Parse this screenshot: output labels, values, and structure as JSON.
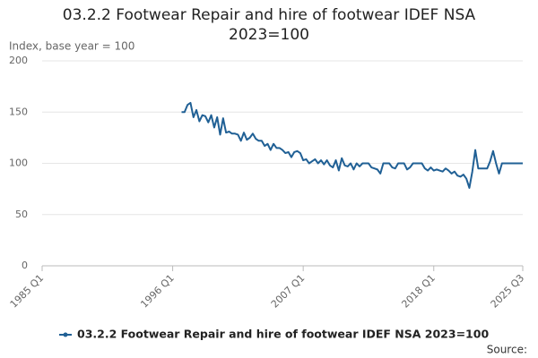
{
  "chart_data": {
    "type": "line",
    "title": "03.2.2 Footwear Repair and hire of footwear IDEF NSA 2023=100",
    "y_label": "Index, base year = 100",
    "source_label": "Source:",
    "xlim": [
      1985,
      2025.5
    ],
    "xticks": [
      {
        "value": 1985,
        "label": "1985 Q1"
      },
      {
        "value": 1996,
        "label": "1996 Q1"
      },
      {
        "value": 2007,
        "label": "2007 Q1"
      },
      {
        "value": 2018,
        "label": "2018 Q1"
      },
      {
        "value": 2025.5,
        "label": "2025 Q3"
      }
    ],
    "ylim": [
      0,
      200
    ],
    "yticks": [
      0,
      50,
      100,
      150,
      200
    ],
    "grid": true,
    "legend": "bottom",
    "x": [
      1996.75,
      1997,
      1997.25,
      1997.5,
      1997.75,
      1998,
      1998.25,
      1998.5,
      1998.75,
      1999,
      1999.25,
      1999.5,
      1999.75,
      2000,
      2000.25,
      2000.5,
      2000.75,
      2001,
      2001.25,
      2001.5,
      2001.75,
      2002,
      2002.25,
      2002.5,
      2002.75,
      2003,
      2003.25,
      2003.5,
      2003.75,
      2004,
      2004.25,
      2004.5,
      2004.75,
      2005,
      2005.25,
      2005.5,
      2005.75,
      2006,
      2006.25,
      2006.5,
      2006.75,
      2007,
      2007.25,
      2007.5,
      2007.75,
      2008,
      2008.25,
      2008.5,
      2008.75,
      2009,
      2009.25,
      2009.5,
      2009.75,
      2010,
      2010.25,
      2010.5,
      2010.75,
      2011,
      2011.25,
      2011.5,
      2011.75,
      2012,
      2012.25,
      2012.5,
      2012.75,
      2013,
      2013.25,
      2013.5,
      2013.75,
      2014,
      2014.25,
      2014.5,
      2014.75,
      2015,
      2015.25,
      2015.5,
      2015.75,
      2016,
      2016.25,
      2016.5,
      2016.75,
      2017,
      2017.25,
      2017.5,
      2017.75,
      2018,
      2018.25,
      2018.5,
      2018.75,
      2019,
      2019.25,
      2019.5,
      2019.75,
      2020,
      2020.25,
      2020.5,
      2020.75,
      2021,
      2021.25,
      2021.5,
      2021.75,
      2022,
      2022.25,
      2022.5,
      2022.75,
      2023,
      2023.25,
      2023.5,
      2023.75,
      2024,
      2024.25,
      2024.5,
      2024.75,
      2025,
      2025.25,
      2025.5
    ],
    "series": [
      {
        "name": "03.2.2 Footwear Repair and hire of footwear IDEF NSA 2023=100",
        "color": "#206095",
        "values": [
          150,
          150,
          157,
          159,
          145,
          152,
          141,
          147,
          146,
          140,
          147,
          135,
          145,
          128,
          144,
          130,
          131,
          129,
          129,
          128,
          122,
          130,
          123,
          125,
          129,
          124,
          122,
          122,
          117,
          119,
          113,
          119,
          115,
          115,
          113,
          110,
          111,
          106,
          111,
          112,
          110,
          103,
          104,
          100,
          102,
          104,
          100,
          103,
          99,
          103,
          98,
          96,
          103,
          93,
          105,
          98,
          97,
          100,
          94,
          100,
          97,
          100,
          100,
          100,
          96,
          95,
          94,
          90,
          100,
          100,
          100,
          96,
          95,
          100,
          100,
          100,
          94,
          96,
          100,
          100,
          100,
          100,
          95,
          93,
          96,
          93,
          94,
          93,
          92,
          95,
          93,
          90,
          92,
          88,
          87,
          89,
          85,
          76,
          92,
          113,
          95,
          95,
          95,
          95,
          102,
          112,
          100,
          90,
          100,
          100,
          100,
          100,
          100,
          100,
          100,
          100
        ]
      }
    ]
  }
}
